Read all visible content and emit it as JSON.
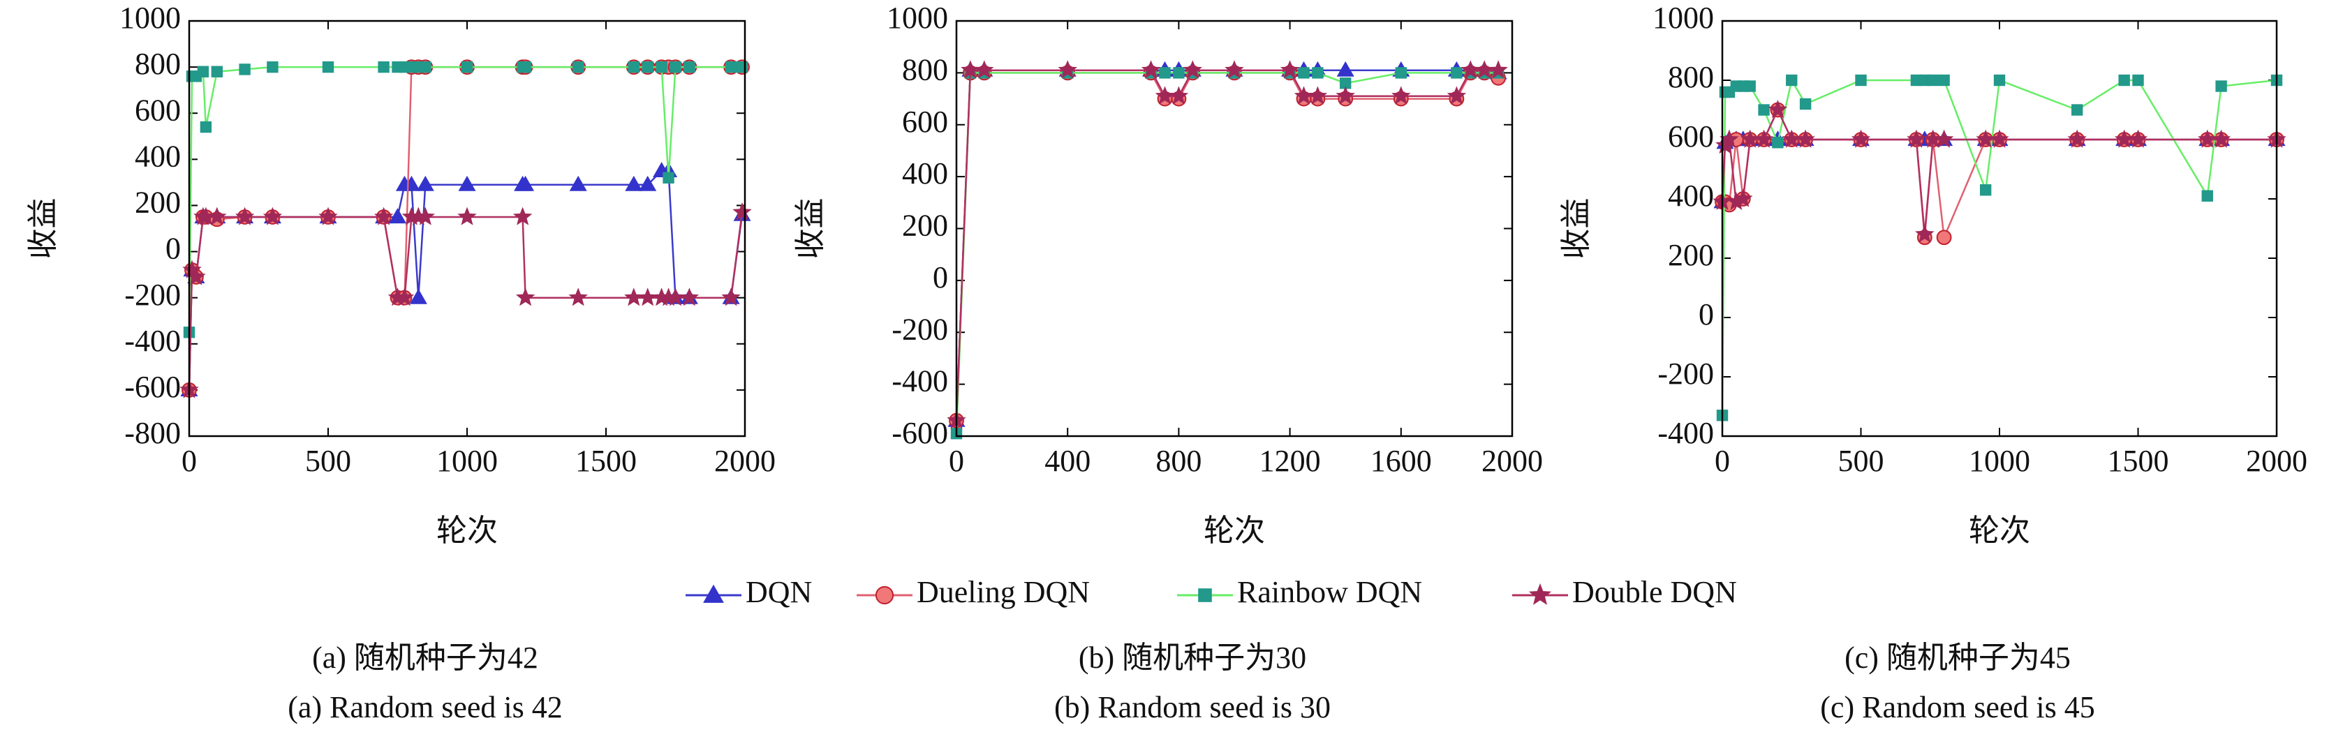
{
  "chart_data": [
    {
      "type": "line",
      "ylabel": "收益",
      "xlabel": "轮次",
      "caption_zh": "(a) 随机种子为42",
      "caption_en": "(a) Random seed is 42",
      "xlim": [
        0,
        2000
      ],
      "ylim": [
        -800,
        1000
      ],
      "xticks": [
        0,
        500,
        1000,
        1500,
        2000
      ],
      "yticks": [
        -800,
        -600,
        -400,
        -200,
        0,
        200,
        400,
        600,
        800,
        1000
      ],
      "x": [
        0,
        10,
        25,
        50,
        60,
        100,
        200,
        300,
        500,
        700,
        750,
        775,
        800,
        825,
        850,
        1000,
        1200,
        1210,
        1400,
        1600,
        1650,
        1700,
        1725,
        1750,
        1800,
        1950,
        1990
      ],
      "series": [
        {
          "values": [
            -600,
            -80,
            -110,
            150,
            150,
            150,
            150,
            150,
            150,
            150,
            150,
            290,
            290,
            -200,
            290,
            290,
            290,
            290,
            290,
            290,
            290,
            350,
            350,
            -200,
            -200,
            -200,
            160
          ]
        },
        {
          "values": [
            -600,
            -80,
            -110,
            150,
            150,
            140,
            150,
            150,
            150,
            150,
            -200,
            -200,
            800,
            800,
            800,
            800,
            800,
            800,
            800,
            800,
            800,
            800,
            800,
            800,
            800,
            800,
            800
          ]
        },
        {
          "values": [
            -350,
            760,
            760,
            780,
            540,
            780,
            790,
            800,
            800,
            800,
            800,
            800,
            800,
            800,
            800,
            800,
            800,
            800,
            800,
            800,
            800,
            800,
            320,
            800,
            800,
            800,
            800
          ]
        },
        {
          "values": [
            -600,
            -80,
            -110,
            150,
            150,
            150,
            150,
            150,
            150,
            150,
            -200,
            -200,
            150,
            150,
            150,
            150,
            150,
            -200,
            -200,
            -200,
            -200,
            -200,
            -200,
            -200,
            -200,
            -200,
            170
          ]
        }
      ]
    },
    {
      "type": "line",
      "ylabel": "收益",
      "xlabel": "轮次",
      "caption_zh": "(b) 随机种子为30",
      "caption_en": "(b) Random seed is 30",
      "xlim": [
        0,
        2000
      ],
      "ylim": [
        -600,
        1000
      ],
      "xticks": [
        0,
        400,
        800,
        1200,
        1600,
        2000
      ],
      "yticks": [
        -600,
        -400,
        -200,
        0,
        200,
        400,
        600,
        800,
        1000
      ],
      "x": [
        0,
        50,
        100,
        400,
        700,
        750,
        800,
        850,
        1000,
        1200,
        1250,
        1300,
        1400,
        1600,
        1800,
        1850,
        1900,
        1950
      ],
      "series": [
        {
          "values": [
            -540,
            810,
            810,
            810,
            810,
            810,
            810,
            810,
            810,
            810,
            810,
            810,
            810,
            810,
            810,
            810,
            810,
            800
          ]
        },
        {
          "values": [
            -540,
            800,
            800,
            800,
            800,
            700,
            700,
            800,
            800,
            800,
            700,
            700,
            700,
            700,
            700,
            800,
            800,
            780
          ]
        },
        {
          "values": [
            -590,
            800,
            800,
            800,
            800,
            800,
            800,
            800,
            800,
            800,
            800,
            800,
            760,
            800,
            800,
            800,
            800,
            800
          ]
        },
        {
          "values": [
            -540,
            810,
            810,
            810,
            810,
            710,
            710,
            810,
            810,
            810,
            710,
            710,
            710,
            710,
            710,
            810,
            810,
            810
          ]
        }
      ]
    },
    {
      "type": "line",
      "ylabel": "收益",
      "xlabel": "轮次",
      "caption_zh": "(c) 随机种子为45",
      "caption_en": "(c) Random seed is 45",
      "xlim": [
        0,
        2000
      ],
      "ylim": [
        -400,
        1000
      ],
      "xticks": [
        0,
        500,
        1000,
        1500,
        2000
      ],
      "yticks": [
        -400,
        -200,
        0,
        200,
        400,
        600,
        800,
        1000
      ],
      "x": [
        0,
        10,
        25,
        50,
        75,
        100,
        150,
        200,
        250,
        300,
        500,
        700,
        730,
        760,
        800,
        950,
        1000,
        1280,
        1450,
        1500,
        1750,
        1800,
        2000
      ],
      "series": [
        {
          "values": [
            390,
            590,
            600,
            600,
            600,
            600,
            600,
            600,
            600,
            600,
            600,
            600,
            600,
            600,
            600,
            600,
            600,
            600,
            600,
            600,
            600,
            600,
            600
          ]
        },
        {
          "values": [
            390,
            390,
            380,
            600,
            400,
            600,
            600,
            700,
            600,
            600,
            600,
            600,
            270,
            600,
            270,
            600,
            600,
            600,
            600,
            600,
            600,
            600,
            600
          ]
        },
        {
          "values": [
            -330,
            760,
            760,
            780,
            780,
            780,
            700,
            590,
            800,
            720,
            800,
            800,
            800,
            800,
            800,
            430,
            800,
            700,
            800,
            800,
            410,
            780,
            800
          ]
        },
        {
          "values": [
            390,
            580,
            600,
            390,
            400,
            600,
            600,
            700,
            600,
            600,
            600,
            600,
            280,
            600,
            600,
            600,
            600,
            600,
            600,
            600,
            600,
            600,
            600
          ]
        }
      ]
    }
  ],
  "legend": [
    {
      "name": "DQN",
      "color": "#3a3acc",
      "marker_color": "#3333cc",
      "marker": "triangle"
    },
    {
      "name": "Dueling DQN",
      "color": "#e06070",
      "marker_color": "#f07878",
      "marker": "circle"
    },
    {
      "name": "Rainbow DQN",
      "color": "#66ee66",
      "marker_color": "#22998a",
      "marker": "square"
    },
    {
      "name": "Double DQN",
      "color": "#b03060",
      "marker_color": "#a02858",
      "marker": "star"
    }
  ]
}
